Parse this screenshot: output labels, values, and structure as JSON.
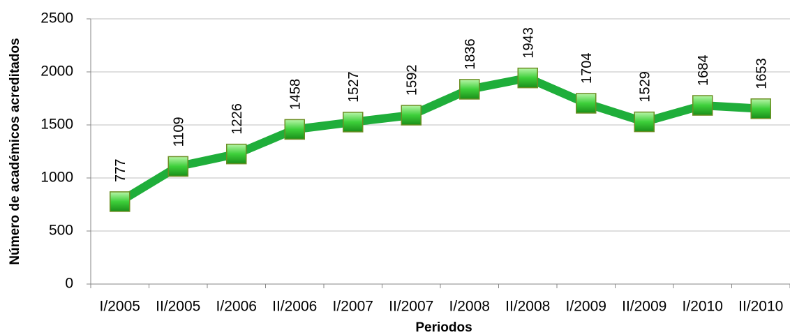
{
  "chart_data": {
    "type": "line",
    "categories": [
      "I/2005",
      "II/2005",
      "I/2006",
      "II/2006",
      "I/2007",
      "II/2007",
      "I/2008",
      "II/2008",
      "I/2009",
      "II/2009",
      "I/2010",
      "II/2010"
    ],
    "series": [
      {
        "name": "Número de académicos acreditados",
        "color": "#1fae3a",
        "values": [
          777,
          1109,
          1226,
          1458,
          1527,
          1592,
          1836,
          1943,
          1704,
          1529,
          1684,
          1653
        ]
      }
    ],
    "xlabel": "Periodos",
    "ylabel": "Número de académicos acreditados",
    "ylim": [
      0,
      2500
    ],
    "yticks": [
      0,
      500,
      1000,
      1500,
      2000,
      2500
    ],
    "grid": true
  }
}
